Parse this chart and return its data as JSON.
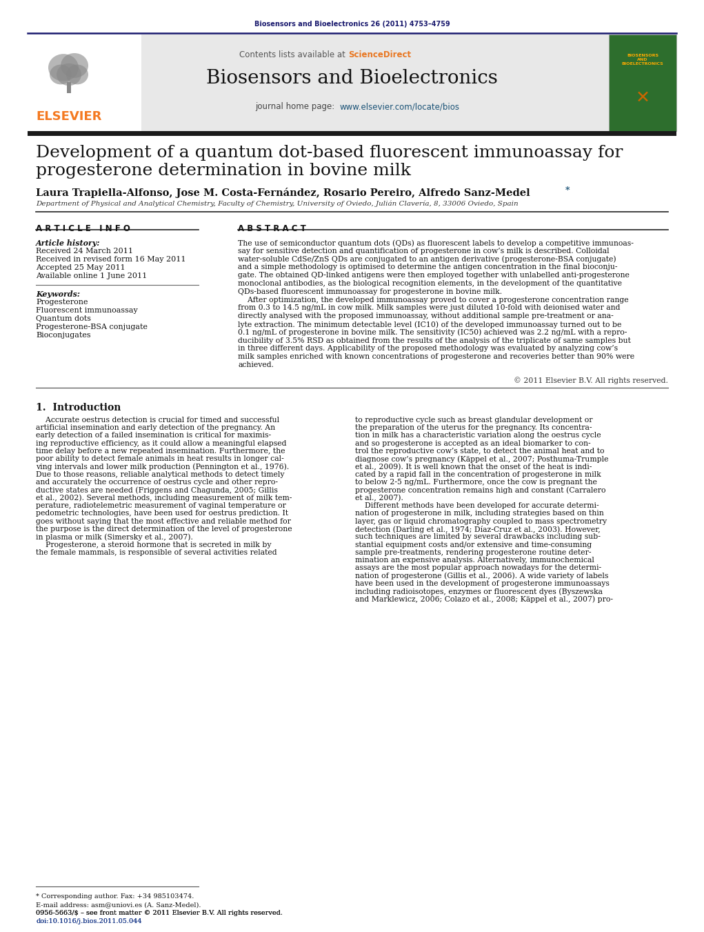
{
  "journal_ref": "Biosensors and Bioelectronics 26 (2011) 4753–4759",
  "journal_name": "Biosensors and Bioelectronics",
  "contents_text_plain": "Contents lists available at ",
  "contents_sciencedirect": "ScienceDirect",
  "journal_homepage_label": "journal home page: ",
  "journal_homepage_url": "www.elsevier.com/locate/bios",
  "title_line1": "Development of a quantum dot-based fluorescent immunoassay for",
  "title_line2": "progesterone determination in bovine milk",
  "authors_line": "Laura Trapiella-Alfonso, Jose M. Costa-Fernández, Rosario Pereiro, Alfredo Sanz-Medel",
  "affiliation": "Department of Physical and Analytical Chemistry, Faculty of Chemistry, University of Oviedo, Julián Clavería, 8, 33006 Oviedo, Spain",
  "article_info_header": "A R T I C L E   I N F O",
  "abstract_header": "A B S T R A C T",
  "article_history_label": "Article history:",
  "received": "Received 24 March 2011",
  "received_revised": "Received in revised form 16 May 2011",
  "accepted": "Accepted 25 May 2011",
  "available": "Available online 1 June 2011",
  "keywords_label": "Keywords:",
  "keywords": [
    "Progesterone",
    "Fluorescent immunoassay",
    "Quantum dots",
    "Progesterone-BSA conjugate",
    "Bioconjugates"
  ],
  "abstract_lines": [
    "The use of semiconductor quantum dots (QDs) as fluorescent labels to develop a competitive immunoas-",
    "say for sensitive detection and quantification of progesterone in cow’s milk is described. Colloidal",
    "water-soluble CdSe/ZnS QDs are conjugated to an antigen derivative (progesterone-BSA conjugate)",
    "and a simple methodology is optimised to determine the antigen concentration in the final bioconju-",
    "gate. The obtained QD-linked antigens were then employed together with unlabelled anti-progesterone",
    "monoclonal antibodies, as the biological recognition elements, in the development of the quantitative",
    "QDs-based fluorescent immunoassay for progesterone in bovine milk.",
    "    After optimization, the developed immunoassay proved to cover a progesterone concentration range",
    "from 0.3 to 14.5 ng/mL in cow milk. Milk samples were just diluted 10-fold with deionised water and",
    "directly analysed with the proposed immunoassay, without additional sample pre-treatment or ana-",
    "lyte extraction. The minimum detectable level (IC10) of the developed immunoassay turned out to be",
    "0.1 ng/mL of progesterone in bovine milk. The sensitivity (IC50) achieved was 2.2 ng/mL with a repro-",
    "ducibility of 3.5% RSD as obtained from the results of the analysis of the triplicate of same samples but",
    "in three different days. Applicability of the proposed methodology was evaluated by analyzing cow’s",
    "milk samples enriched with known concentrations of progesterone and recoveries better than 90% were",
    "achieved."
  ],
  "copyright": "© 2011 Elsevier B.V. All rights reserved.",
  "intro_header": "1.  Introduction",
  "intro_col1_lines": [
    "    Accurate oestrus detection is crucial for timed and successful",
    "artificial insemination and early detection of the pregnancy. An",
    "early detection of a failed insemination is critical for maximis-",
    "ing reproductive efficiency, as it could allow a meaningful elapsed",
    "time delay before a new repeated insemination. Furthermore, the",
    "poor ability to detect female animals in heat results in longer cal-",
    "ving intervals and lower milk production (Pennington et al., 1976).",
    "Due to those reasons, reliable analytical methods to detect timely",
    "and accurately the occurrence of oestrus cycle and other repro-",
    "ductive states are needed (Friggens and Chagunda, 2005; Gillis",
    "et al., 2002). Several methods, including measurement of milk tem-",
    "perature, radiotelemetric measurement of vaginal temperature or",
    "pedometric technologies, have been used for oestrus prediction. It",
    "goes without saying that the most effective and reliable method for",
    "the purpose is the direct determination of the level of progesterone",
    "in plasma or milk (Simersky et al., 2007).",
    "    Progesterone, a steroid hormone that is secreted in milk by",
    "the female mammals, is responsible of several activities related"
  ],
  "intro_col2_lines": [
    "to reproductive cycle such as breast glandular development or",
    "the preparation of the uterus for the pregnancy. Its concentra-",
    "tion in milk has a characteristic variation along the oestrus cycle",
    "and so progesterone is accepted as an ideal biomarker to con-",
    "trol the reproductive cow’s state, to detect the animal heat and to",
    "diagnose cow’s pregnancy (Käppel et al., 2007; Posthuma-Trumple",
    "et al., 2009). It is well known that the onset of the heat is indi-",
    "cated by a rapid fall in the concentration of progesterone in milk",
    "to below 2-5 ng/mL. Furthermore, once the cow is pregnant the",
    "progesterone concentration remains high and constant (Carralero",
    "et al., 2007).",
    "    Different methods have been developed for accurate determi-",
    "nation of progesterone in milk, including strategies based on thin",
    "layer, gas or liquid chromatography coupled to mass spectrometry",
    "detection (Darling et al., 1974; Díaz-Cruz et al., 2003). However,",
    "such techniques are limited by several drawbacks including sub-",
    "stantial equipment costs and/or extensive and time-consuming",
    "sample pre-treatments, rendering progesterone routine deter-",
    "mination an expensive analysis. Alternatively, immunochemical",
    "assays are the most popular approach nowadays for the determi-",
    "nation of progesterone (Gillis et al., 2006). A wide variety of labels",
    "have been used in the development of progesterone immunoassays",
    "including radioisotopes, enzymes or fluorescent dyes (Byszewska",
    "and Marklewicz, 2006; Colazo et al., 2008; Käppel et al., 2007) pro-"
  ],
  "footnote1": "* Corresponding author. Fax: +34 985103474.",
  "footnote2": "E-mail address: asm@uniovi.es (A. Sanz-Medel).",
  "footnote3": "0956-5663/$ – see front matter © 2011 Elsevier B.V. All rights reserved.",
  "footnote4": "doi:10.1016/j.bios.2011.05.044",
  "color_orange": "#f47920",
  "color_dark_blue": "#1a1a6e",
  "color_sciencedirect": "#e87722",
  "color_link_blue": "#1a5276",
  "color_doi_blue": "#1a3a8a",
  "color_black": "#111111",
  "color_dark_gray": "#333333",
  "color_mid_gray": "#555555",
  "bg_gray": "#e8e8e8",
  "bg_white": "#ffffff",
  "cover_green": "#2d6e2d"
}
